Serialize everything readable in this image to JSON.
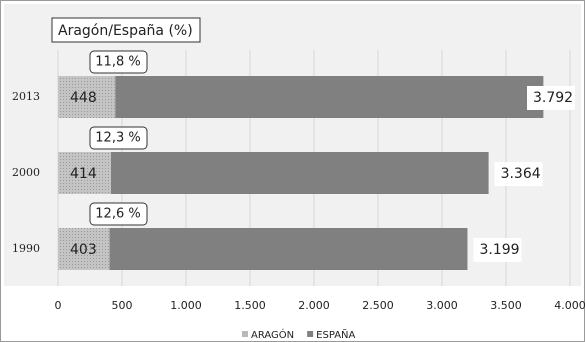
{
  "chart_data": {
    "type": "bar",
    "orientation": "horizontal",
    "overlap": true,
    "title": "Aragón/España (%)",
    "categories": [
      "2013",
      "2000",
      "1990"
    ],
    "series": [
      {
        "name": "ARAGÓN",
        "color": "#b9b9b9",
        "values": [
          448,
          414,
          403
        ]
      },
      {
        "name": "ESPAÑA",
        "color": "#808080",
        "values": [
          3792,
          3364,
          3199
        ],
        "value_labels": [
          "3.792",
          "3.364",
          "3.199"
        ]
      }
    ],
    "annotations": [
      "11,8 %",
      "12,3 %",
      "12,6 %"
    ],
    "xlim": [
      0,
      4000
    ],
    "xticks": [
      0,
      500,
      {
        "value": 1000,
        "label": "1.000"
      },
      {
        "value": 1500,
        "label": "1.500"
      },
      {
        "value": 2000,
        "label": "2.000"
      },
      {
        "value": 2500,
        "label": "2.500"
      },
      {
        "value": 3000,
        "label": "3.000"
      },
      {
        "value": 3500,
        "label": "3.500"
      },
      {
        "value": 4000,
        "label": "4.000"
      }
    ],
    "grid": true,
    "legend": "bottom"
  }
}
